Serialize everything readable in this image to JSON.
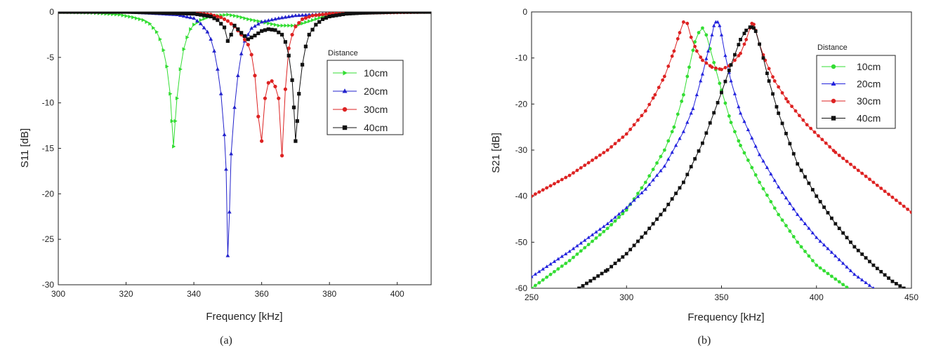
{
  "chart_data": [
    {
      "type": "line",
      "panel_label": "(a)",
      "xlabel": "Frequency [kHz]",
      "ylabel": "S11 [dB]",
      "xlim": [
        300,
        410
      ],
      "ylim": [
        -30,
        0
      ],
      "xticks": [
        300,
        320,
        340,
        360,
        380,
        400
      ],
      "yticks": [
        0,
        -5,
        -10,
        -15,
        -20,
        -25,
        -30
      ],
      "legend_title": "Distance",
      "legend_position": "right",
      "grid": false,
      "series": [
        {
          "name": "10cm",
          "color": "#33dd33",
          "marker": "triangle-right",
          "x": [
            300,
            310,
            318,
            322,
            325,
            327,
            329,
            330,
            331,
            332,
            333,
            333.5,
            334,
            334.5,
            335,
            336,
            337,
            338,
            339,
            340,
            342,
            344,
            347,
            350,
            353,
            356,
            360,
            365,
            370,
            380,
            390,
            400,
            410
          ],
          "y": [
            0,
            -0.1,
            -0.3,
            -0.6,
            -0.9,
            -1.3,
            -2.2,
            -3.0,
            -4.2,
            -6.0,
            -9.0,
            -12.0,
            -14.8,
            -12.0,
            -9.5,
            -6.3,
            -4.1,
            -2.8,
            -1.9,
            -1.4,
            -0.9,
            -0.6,
            -0.4,
            -0.3,
            -0.5,
            -0.8,
            -1.1,
            -1.5,
            -1.5,
            -0.3,
            -0.1,
            0,
            0
          ]
        },
        {
          "name": "20cm",
          "color": "#2222cc",
          "marker": "triangle-up",
          "x": [
            300,
            320,
            335,
            340,
            342,
            344,
            345,
            346,
            347,
            348,
            349,
            349.5,
            350,
            350.5,
            351,
            352,
            353,
            354,
            355,
            357,
            360,
            365,
            370,
            380,
            400,
            410
          ],
          "y": [
            0,
            0,
            -0.3,
            -0.7,
            -1.3,
            -2.2,
            -3.0,
            -4.3,
            -6.3,
            -9.0,
            -13.5,
            -17.3,
            -26.8,
            -22.0,
            -15.6,
            -10.5,
            -7.0,
            -4.6,
            -3.2,
            -1.8,
            -1.1,
            -0.7,
            -0.4,
            -0.2,
            0,
            0
          ]
        },
        {
          "name": "30cm",
          "color": "#dd2222",
          "marker": "circle",
          "x": [
            300,
            330,
            340,
            345,
            348,
            350,
            352,
            354,
            356,
            357,
            358,
            359,
            360,
            361,
            362,
            363,
            364,
            365,
            366,
            367,
            368,
            369,
            370,
            372,
            375,
            380,
            390,
            410
          ],
          "y": [
            0,
            0,
            -0.1,
            -0.3,
            -0.6,
            -1.0,
            -1.6,
            -2.5,
            -3.6,
            -4.7,
            -7.0,
            -11.5,
            -14.2,
            -9.5,
            -7.8,
            -7.6,
            -8.2,
            -9.5,
            -15.8,
            -8.5,
            -4.0,
            -2.5,
            -1.6,
            -0.8,
            -0.4,
            -0.2,
            -0.1,
            0
          ]
        },
        {
          "name": "40cm",
          "color": "#111111",
          "marker": "square",
          "x": [
            300,
            320,
            340,
            345,
            347,
            349,
            350,
            351,
            352,
            354,
            356,
            358,
            360,
            362,
            364,
            366,
            367,
            368,
            369,
            369.5,
            370,
            370.5,
            371,
            372,
            373,
            374,
            376,
            378,
            380,
            385,
            390,
            400,
            410
          ],
          "y": [
            0,
            0,
            -0.2,
            -0.5,
            -0.9,
            -1.7,
            -3.2,
            -2.5,
            -1.5,
            -2.3,
            -3.0,
            -2.6,
            -2.1,
            -1.9,
            -2.0,
            -2.5,
            -3.3,
            -4.8,
            -7.5,
            -10.5,
            -14.2,
            -12.0,
            -9.0,
            -5.8,
            -3.8,
            -2.5,
            -1.4,
            -0.8,
            -0.5,
            -0.2,
            -0.1,
            0,
            0
          ]
        }
      ]
    },
    {
      "type": "line",
      "panel_label": "(b)",
      "xlabel": "Frequency [kHz]",
      "ylabel": "S21 [dB]",
      "xlim": [
        250,
        450
      ],
      "ylim": [
        -60,
        0
      ],
      "xticks": [
        250,
        300,
        350,
        400,
        450
      ],
      "yticks": [
        0,
        -10,
        -20,
        -30,
        -40,
        -50,
        -60
      ],
      "legend_title": "Distance",
      "legend_position": "right",
      "grid": false,
      "series": [
        {
          "name": "10cm",
          "color": "#33dd33",
          "marker": "circle",
          "x": [
            250,
            270,
            290,
            300,
            310,
            320,
            325,
            330,
            333,
            336,
            338,
            340,
            342,
            344,
            347,
            350,
            355,
            360,
            370,
            380,
            390,
            400,
            410,
            420
          ],
          "y": [
            -60,
            -54,
            -47,
            -43,
            -37,
            -30,
            -25,
            -18,
            -12,
            -6.5,
            -4.5,
            -3.5,
            -5,
            -8,
            -12.5,
            -17,
            -24,
            -29,
            -37,
            -44,
            -50,
            -55,
            -58,
            -61
          ]
        },
        {
          "name": "20cm",
          "color": "#2222dd",
          "marker": "triangle-up",
          "x": [
            250,
            270,
            290,
            300,
            310,
            320,
            330,
            335,
            340,
            343,
            345,
            346,
            347,
            348,
            349,
            350,
            352,
            355,
            360,
            370,
            380,
            390,
            400,
            410,
            420,
            430,
            435
          ],
          "y": [
            -57.5,
            -52,
            -46,
            -42.5,
            -38.5,
            -33.5,
            -26,
            -21,
            -13.5,
            -8.5,
            -5,
            -3,
            -2.2,
            -2.2,
            -3,
            -5,
            -9.5,
            -15,
            -22,
            -31,
            -38,
            -44,
            -49,
            -53,
            -57,
            -60,
            -61
          ]
        },
        {
          "name": "30cm",
          "color": "#dd2222",
          "marker": "circle",
          "x": [
            250,
            270,
            290,
            300,
            310,
            315,
            320,
            325,
            328,
            330,
            332,
            334,
            337,
            340,
            345,
            350,
            355,
            360,
            363,
            365,
            366,
            367,
            368,
            370,
            373,
            378,
            385,
            395,
            410,
            430,
            450
          ],
          "y": [
            -40,
            -35.5,
            -30,
            -26.5,
            -21.5,
            -18,
            -14,
            -8.5,
            -4.5,
            -2.2,
            -2.5,
            -5.5,
            -8.5,
            -10.5,
            -12,
            -12.5,
            -11.5,
            -9,
            -6,
            -3.5,
            -2.5,
            -2.7,
            -4,
            -7,
            -10.5,
            -15,
            -19.5,
            -24.5,
            -30.5,
            -37,
            -43.5
          ]
        },
        {
          "name": "40cm",
          "color": "#111111",
          "marker": "square",
          "x": [
            275,
            290,
            300,
            310,
            320,
            330,
            340,
            350,
            355,
            360,
            363,
            365,
            366,
            367,
            368,
            370,
            372,
            375,
            380,
            390,
            400,
            410,
            420,
            430,
            440,
            450
          ],
          "y": [
            -60,
            -56,
            -52.5,
            -48,
            -43,
            -37,
            -28.5,
            -17.5,
            -11.5,
            -6,
            -4,
            -3.3,
            -3.3,
            -3.5,
            -4.2,
            -7,
            -10,
            -15,
            -22,
            -33,
            -40,
            -46,
            -51,
            -55,
            -58.5,
            -61
          ]
        }
      ]
    }
  ]
}
